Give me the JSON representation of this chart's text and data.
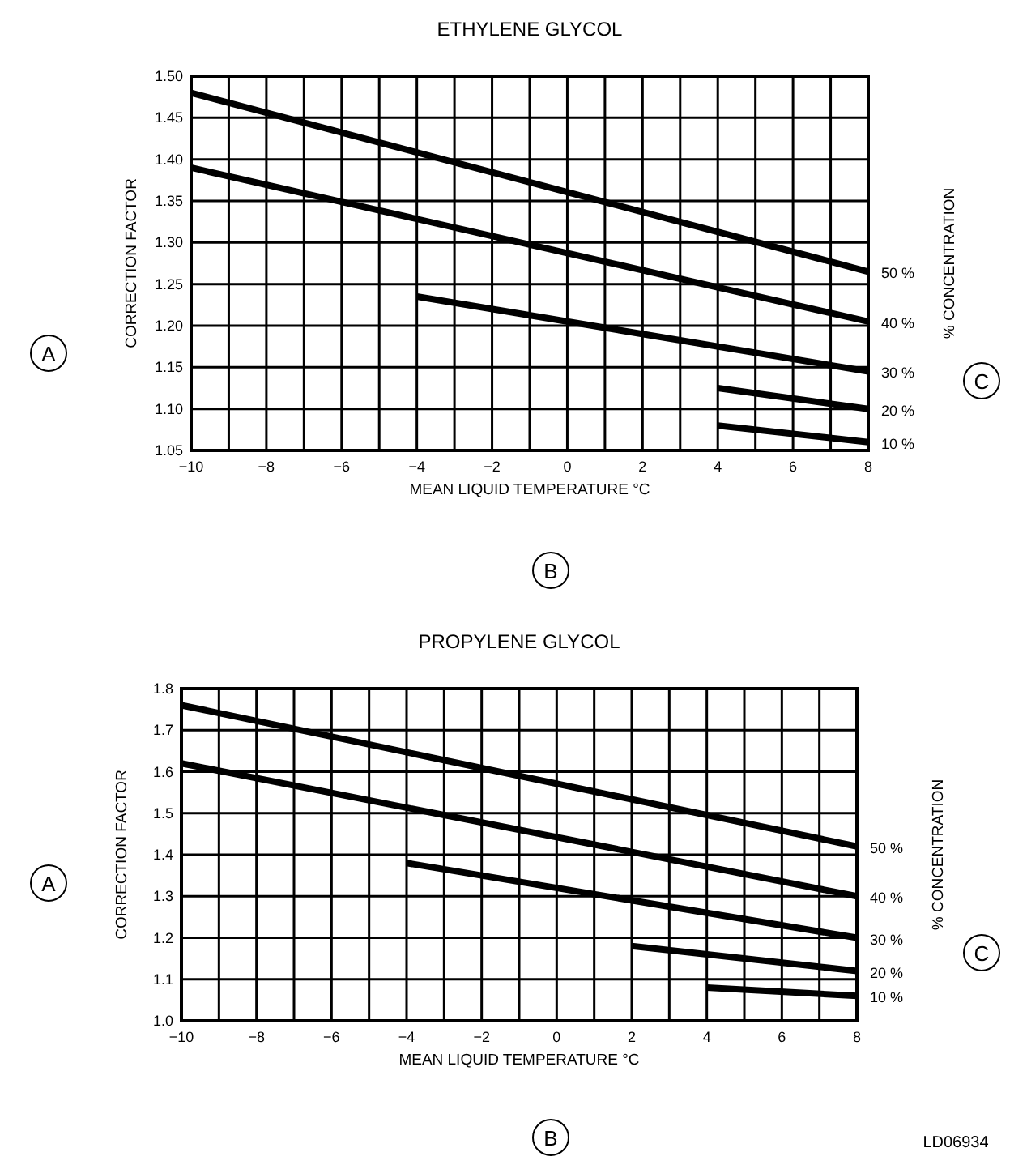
{
  "chart_data": [
    {
      "type": "line",
      "title": "ETHYLENE GLYCOL",
      "xlabel": "MEAN LIQUID TEMPERATURE °C",
      "ylabel": "CORRECTION FACTOR",
      "legend_title": "% CONCENTRATION",
      "annotations": [
        "A",
        "B",
        "C"
      ],
      "xlim": [
        -10,
        8
      ],
      "xticks": [
        -10,
        {
          "value": -9,
          "label": null
        },
        -8,
        {
          "value": -7,
          "label": null
        },
        -6,
        {
          "value": -5,
          "label": null
        },
        -4,
        {
          "value": -3,
          "label": null
        },
        -2,
        {
          "value": -1,
          "label": null
        },
        0,
        {
          "value": 1,
          "label": null
        },
        2,
        {
          "value": 3,
          "label": null
        },
        4,
        {
          "value": 5,
          "label": null
        },
        6,
        {
          "value": 7,
          "label": null
        },
        8
      ],
      "ylim": [
        1.05,
        1.5
      ],
      "yticks": [
        {
          "value": 1.05,
          "label": "1.05"
        },
        {
          "value": 1.1,
          "label": "1.10"
        },
        {
          "value": 1.15,
          "label": "1.15"
        },
        {
          "value": 1.2,
          "label": "1.20"
        },
        {
          "value": 1.25,
          "label": "1.25"
        },
        {
          "value": 1.3,
          "label": "1.30"
        },
        {
          "value": 1.35,
          "label": "1.35"
        },
        {
          "value": 1.4,
          "label": "1.40"
        },
        {
          "value": 1.45,
          "label": "1.45"
        },
        {
          "value": 1.5,
          "label": "1.50"
        }
      ],
      "grid": true,
      "line_style": "solid",
      "marker": "none",
      "series": [
        {
          "name": "50 %",
          "color": "#000000",
          "x": [
            -10,
            8
          ],
          "values": [
            1.48,
            1.265
          ]
        },
        {
          "name": "40 %",
          "color": "#000000",
          "x": [
            -10,
            8
          ],
          "values": [
            1.39,
            1.205
          ]
        },
        {
          "name": "30 %",
          "color": "#000000",
          "x": [
            -4,
            8
          ],
          "values": [
            1.235,
            1.145
          ]
        },
        {
          "name": "20 %",
          "color": "#000000",
          "x": [
            4,
            8
          ],
          "values": [
            1.125,
            1.1
          ]
        },
        {
          "name": "10 %",
          "color": "#000000",
          "x": [
            4,
            8
          ],
          "values": [
            1.08,
            1.06
          ]
        }
      ]
    },
    {
      "type": "line",
      "title": "PROPYLENE GLYCOL",
      "xlabel": "MEAN LIQUID TEMPERATURE °C",
      "ylabel": "CORRECTION FACTOR",
      "legend_title": "% CONCENTRATION",
      "annotations": [
        "A",
        "B",
        "C",
        "LD06934"
      ],
      "xlim": [
        -10,
        8
      ],
      "xticks": [
        -10,
        {
          "value": -9,
          "label": null
        },
        -8,
        {
          "value": -7,
          "label": null
        },
        -6,
        {
          "value": -5,
          "label": null
        },
        -4,
        {
          "value": -3,
          "label": null
        },
        -2,
        {
          "value": -1,
          "label": null
        },
        0,
        {
          "value": 1,
          "label": null
        },
        2,
        {
          "value": 3,
          "label": null
        },
        4,
        {
          "value": 5,
          "label": null
        },
        6,
        {
          "value": 7,
          "label": null
        },
        8
      ],
      "ylim": [
        1.0,
        1.8
      ],
      "yticks": [
        {
          "value": 1.0,
          "label": "1.0"
        },
        1.1,
        1.2,
        1.3,
        1.4,
        1.5,
        1.6,
        1.7,
        1.8
      ],
      "grid": true,
      "line_style": "solid",
      "marker": "none",
      "series": [
        {
          "name": "50 %",
          "color": "#000000",
          "x": [
            -10,
            8
          ],
          "values": [
            1.76,
            1.42
          ]
        },
        {
          "name": "40 %",
          "color": "#000000",
          "x": [
            -10,
            8
          ],
          "values": [
            1.62,
            1.3
          ]
        },
        {
          "name": "30 %",
          "color": "#000000",
          "x": [
            -4,
            8
          ],
          "values": [
            1.38,
            1.2
          ]
        },
        {
          "name": "20 %",
          "color": "#000000",
          "x": [
            2,
            8
          ],
          "values": [
            1.18,
            1.12
          ]
        },
        {
          "name": "10 %",
          "color": "#000000",
          "x": [
            4,
            8
          ],
          "values": [
            1.08,
            1.06
          ]
        }
      ]
    }
  ]
}
